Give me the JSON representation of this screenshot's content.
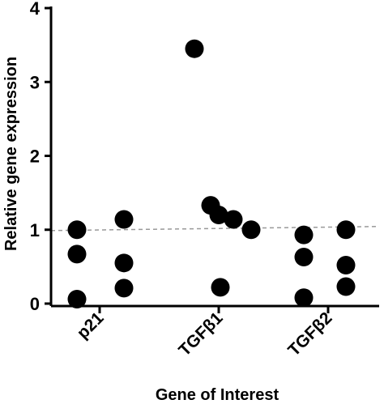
{
  "chart_data": {
    "type": "scatter",
    "xlabel": "Gene of Interest",
    "ylabel": "Relative gene expression",
    "ylim": [
      0,
      4
    ],
    "yticks": [
      "0",
      "1",
      "2",
      "3",
      "4"
    ],
    "categories": [
      "p21",
      "TGFβ1",
      "TGFβ2"
    ],
    "reference_line": {
      "y": 1.0,
      "style": "dashed",
      "color": "#999999"
    },
    "point_color": "#000000",
    "series": [
      {
        "category": "p21",
        "values": [
          1.0,
          0.67,
          0.06,
          1.14,
          0.55,
          0.21
        ]
      },
      {
        "category": "TGFβ1",
        "values": [
          3.45,
          1.33,
          1.14,
          1.0,
          0.22,
          1.2
        ]
      },
      {
        "category": "TGFβ2",
        "values": [
          0.93,
          0.63,
          0.08,
          1.0,
          0.52,
          0.23
        ]
      }
    ]
  }
}
